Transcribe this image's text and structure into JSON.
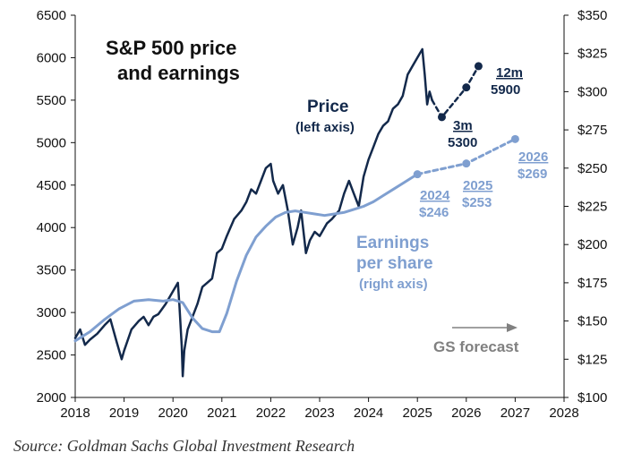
{
  "chart_data": {
    "type": "line",
    "title": "S&P 500 price and earnings",
    "title_lines": [
      "S&P 500 price",
      "and earnings"
    ],
    "x_ticks": [
      "2018",
      "2019",
      "2020",
      "2021",
      "2022",
      "2023",
      "2024",
      "2025",
      "2026",
      "2027",
      "2028"
    ],
    "xlim": [
      2018,
      2028
    ],
    "y_left_ticks": [
      "6500",
      "6000",
      "5500",
      "5000",
      "4500",
      "4000",
      "3500",
      "3000",
      "2500",
      "2000"
    ],
    "ylim_left": [
      2000,
      6500
    ],
    "y_right_ticks": [
      "$350",
      "$325",
      "$300",
      "$275",
      "$250",
      "$225",
      "$200",
      "$175",
      "$150",
      "$125",
      "$100"
    ],
    "ylim_right": [
      100,
      350
    ],
    "grid": false,
    "series": [
      {
        "name": "Price",
        "axis": "left",
        "color": "#13294b",
        "x": [
          2018.0,
          2018.1,
          2018.2,
          2018.3,
          2018.45,
          2018.6,
          2018.72,
          2018.85,
          2018.95,
          2019.0,
          2019.15,
          2019.3,
          2019.4,
          2019.5,
          2019.6,
          2019.7,
          2019.85,
          2020.0,
          2020.1,
          2020.13,
          2020.18,
          2020.2,
          2020.23,
          2020.3,
          2020.4,
          2020.5,
          2020.6,
          2020.7,
          2020.8,
          2020.9,
          2021.0,
          2021.1,
          2021.25,
          2021.4,
          2021.5,
          2021.6,
          2021.7,
          2021.8,
          2021.9,
          2022.0,
          2022.05,
          2022.15,
          2022.25,
          2022.35,
          2022.45,
          2022.55,
          2022.62,
          2022.72,
          2022.8,
          2022.9,
          2023.0,
          2023.15,
          2023.25,
          2023.4,
          2023.5,
          2023.6,
          2023.7,
          2023.8,
          2023.9,
          2024.0,
          2024.1,
          2024.2,
          2024.3,
          2024.4,
          2024.5,
          2024.6,
          2024.7,
          2024.8,
          2024.9,
          2025.0,
          2025.05,
          2025.1,
          2025.15,
          2025.2,
          2025.25,
          2025.3
        ],
        "values": [
          2700,
          2800,
          2620,
          2680,
          2750,
          2850,
          2920,
          2650,
          2450,
          2550,
          2800,
          2900,
          2950,
          2850,
          2950,
          2980,
          3100,
          3250,
          3350,
          3100,
          2600,
          2250,
          2550,
          2800,
          2950,
          3100,
          3300,
          3350,
          3400,
          3700,
          3750,
          3900,
          4100,
          4200,
          4300,
          4450,
          4400,
          4550,
          4700,
          4750,
          4550,
          4400,
          4500,
          4200,
          3800,
          4000,
          4200,
          3700,
          3850,
          3950,
          3900,
          4050,
          4100,
          4200,
          4400,
          4550,
          4400,
          4250,
          4600,
          4800,
          4950,
          5100,
          5200,
          5250,
          5400,
          5450,
          5550,
          5800,
          5900,
          6000,
          6050,
          6100,
          5800,
          5450,
          5600,
          5500
        ]
      },
      {
        "name": "Earnings per share",
        "axis": "right",
        "color": "#7f9fd0",
        "x": [
          2018.0,
          2018.3,
          2018.6,
          2018.9,
          2019.2,
          2019.5,
          2019.8,
          2020.0,
          2020.2,
          2020.4,
          2020.6,
          2020.8,
          2020.95,
          2021.1,
          2021.3,
          2021.5,
          2021.7,
          2021.9,
          2022.1,
          2022.3,
          2022.5,
          2022.7,
          2022.9,
          2023.1,
          2023.3,
          2023.5,
          2023.7,
          2023.9,
          2024.1,
          2024.3,
          2024.5,
          2024.7,
          2024.9,
          2025.0
        ],
        "values": [
          137,
          143,
          151,
          158,
          163,
          164,
          163,
          164,
          162,
          152,
          145,
          143,
          143,
          155,
          176,
          193,
          205,
          212,
          218,
          221,
          222,
          221,
          220,
          219,
          220,
          221,
          223,
          225,
          228,
          232,
          236,
          240,
          244,
          246
        ]
      },
      {
        "name": "GS forecast price",
        "axis": "left",
        "style": "dashed",
        "color": "#13294b",
        "x": [
          2025.3,
          2025.5,
          2026.0,
          2026.25
        ],
        "values": [
          5500,
          5300,
          5650,
          5900
        ]
      },
      {
        "name": "GS forecast EPS",
        "axis": "right",
        "style": "dashed",
        "color": "#7f9fd0",
        "x": [
          2025.0,
          2026.0,
          2027.0
        ],
        "values": [
          246,
          253,
          269
        ]
      }
    ],
    "markers": [
      {
        "axis": "left",
        "x": 2025.5,
        "y": 5300,
        "color": "#13294b"
      },
      {
        "axis": "left",
        "x": 2026.0,
        "y": 5650,
        "color": "#13294b"
      },
      {
        "axis": "left",
        "x": 2026.25,
        "y": 5900,
        "color": "#13294b"
      },
      {
        "axis": "right",
        "x": 2025.0,
        "y": 246,
        "color": "#7f9fd0"
      },
      {
        "axis": "right",
        "x": 2026.0,
        "y": 253,
        "color": "#7f9fd0"
      },
      {
        "axis": "right",
        "x": 2027.0,
        "y": 269,
        "color": "#7f9fd0"
      }
    ],
    "annotations": {
      "price_label": "Price",
      "price_axis_note": "(left axis)",
      "eps_label_line1": "Earnings",
      "eps_label_line2": "per share",
      "eps_axis_note": "(right axis)",
      "gs_forecast": "GS forecast",
      "p3m_label": "3m",
      "p3m_value": "5300",
      "p12m_label": "12m",
      "p12m_value": "5900",
      "e2024_year": "2024",
      "e2024_value": "$246",
      "e2025_year": "2025",
      "e2025_value": "$253",
      "e2026_year": "2026",
      "e2026_value": "$269"
    }
  },
  "source": "Source: Goldman Sachs Global Investment Research"
}
